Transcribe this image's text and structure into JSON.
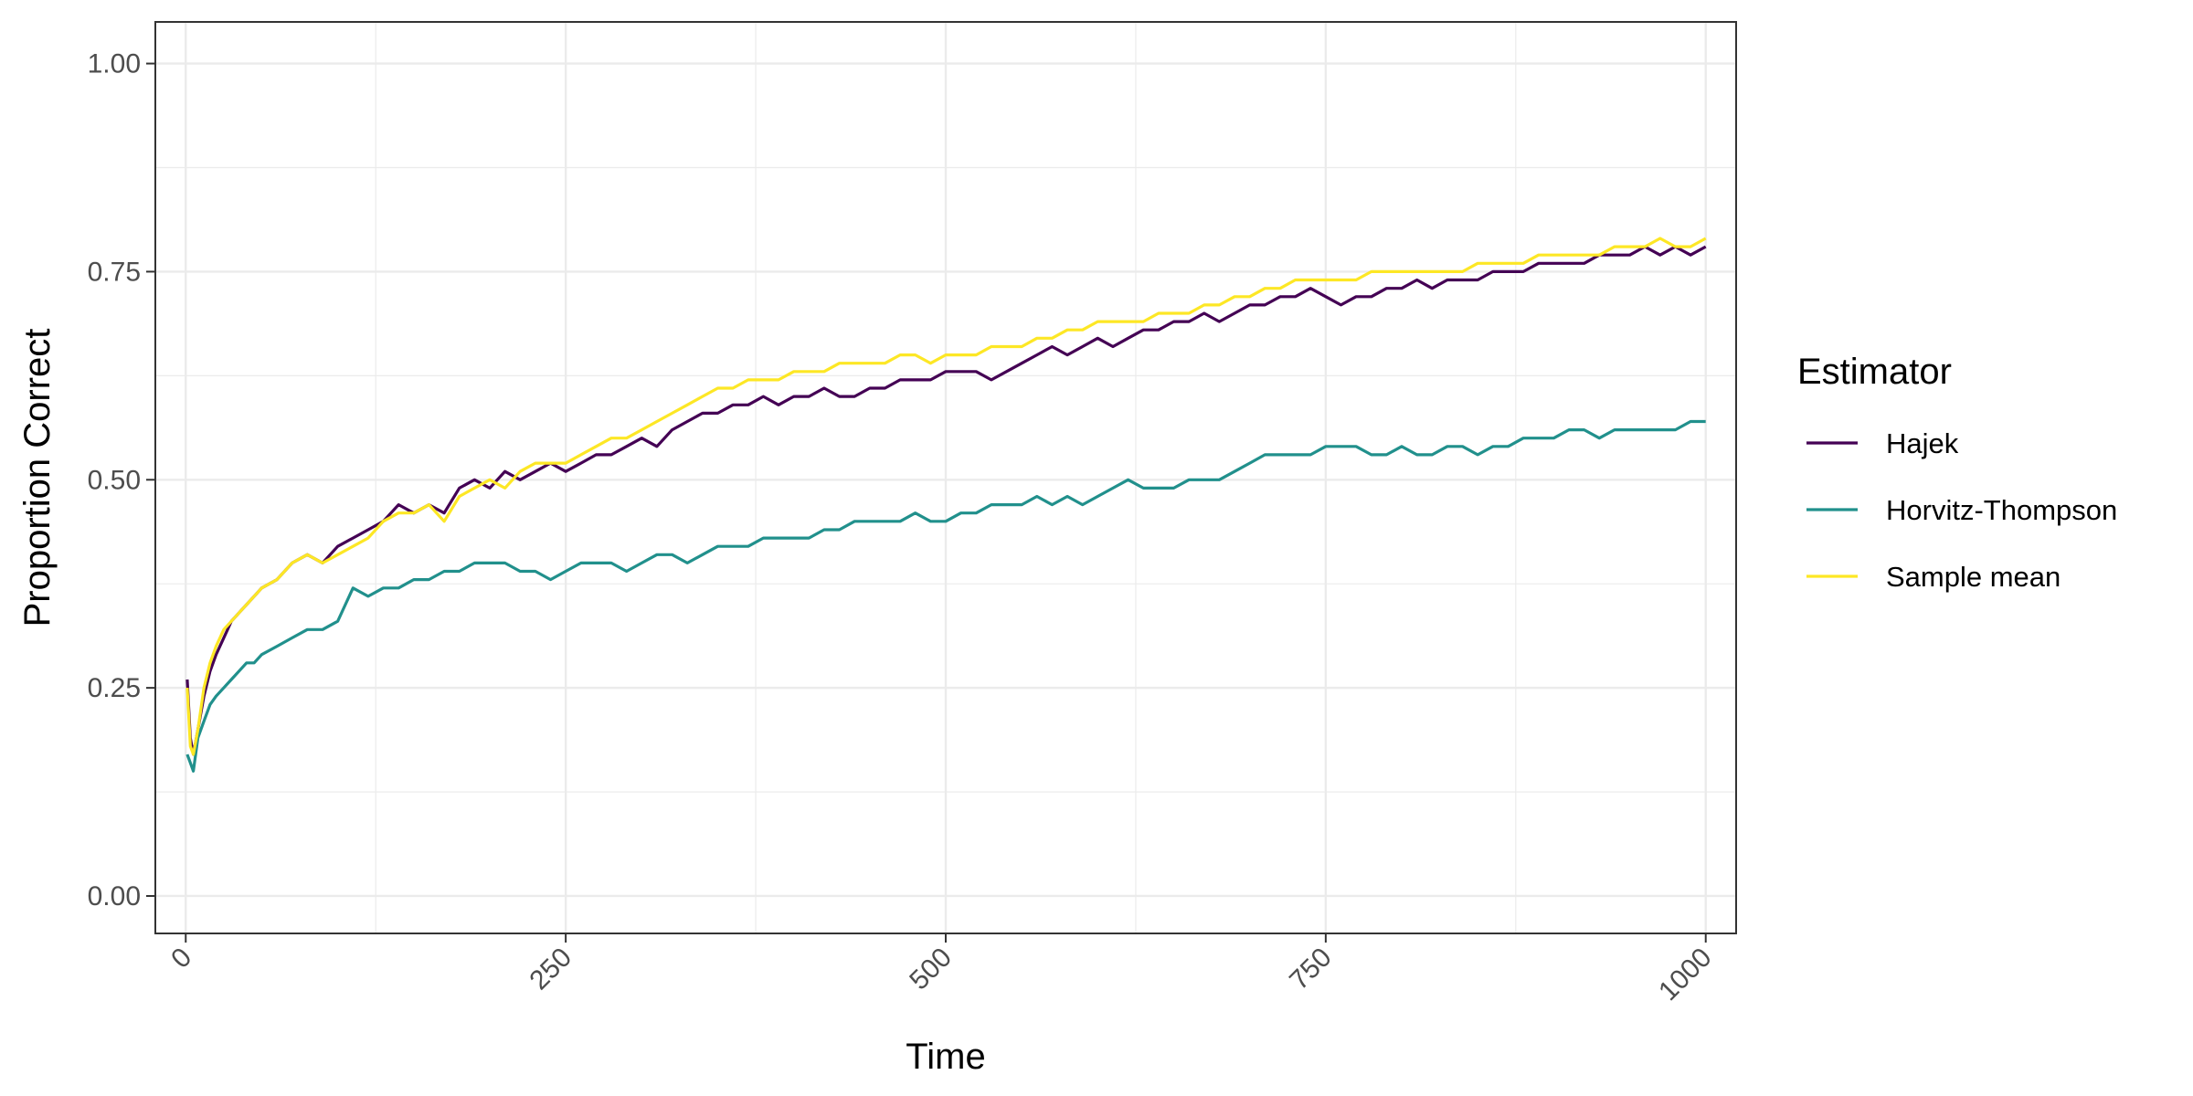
{
  "chart_data": {
    "type": "line",
    "title": "",
    "xlabel": "Time",
    "ylabel": "Proportion Correct",
    "xlim": [
      -20,
      1020
    ],
    "ylim": [
      -0.045,
      1.05
    ],
    "x_ticks": [
      0,
      250,
      500,
      750,
      1000
    ],
    "x_tick_labels": [
      "0",
      "250",
      "500",
      "750",
      "1000"
    ],
    "y_ticks": [
      0,
      0.25,
      0.5,
      0.75,
      1.0
    ],
    "y_tick_labels": [
      "0.00",
      "0.25",
      "0.50",
      "0.75",
      "1.00"
    ],
    "grid": true,
    "legend": {
      "title": "Estimator",
      "position": "right"
    },
    "series": [
      {
        "name": "Hajek",
        "color": "#440154",
        "x": [
          1,
          3,
          5,
          8,
          12,
          16,
          20,
          25,
          30,
          35,
          40,
          45,
          50,
          60,
          70,
          80,
          90,
          100,
          110,
          120,
          130,
          140,
          150,
          160,
          170,
          180,
          190,
          200,
          210,
          220,
          230,
          240,
          250,
          260,
          270,
          280,
          290,
          300,
          310,
          320,
          330,
          340,
          350,
          360,
          370,
          380,
          390,
          400,
          410,
          420,
          430,
          440,
          450,
          460,
          470,
          480,
          490,
          500,
          510,
          520,
          530,
          540,
          550,
          560,
          570,
          580,
          590,
          600,
          610,
          620,
          630,
          640,
          650,
          660,
          670,
          680,
          690,
          700,
          710,
          720,
          730,
          740,
          750,
          760,
          770,
          780,
          790,
          800,
          810,
          820,
          830,
          840,
          850,
          860,
          870,
          880,
          890,
          900,
          910,
          920,
          930,
          940,
          950,
          960,
          970,
          980,
          990,
          1000
        ],
        "y": [
          0.26,
          0.19,
          0.17,
          0.2,
          0.24,
          0.27,
          0.29,
          0.31,
          0.33,
          0.34,
          0.35,
          0.36,
          0.37,
          0.38,
          0.4,
          0.41,
          0.4,
          0.42,
          0.43,
          0.44,
          0.45,
          0.47,
          0.46,
          0.47,
          0.46,
          0.49,
          0.5,
          0.49,
          0.51,
          0.5,
          0.51,
          0.52,
          0.51,
          0.52,
          0.53,
          0.53,
          0.54,
          0.55,
          0.54,
          0.56,
          0.57,
          0.58,
          0.58,
          0.59,
          0.59,
          0.6,
          0.59,
          0.6,
          0.6,
          0.61,
          0.6,
          0.6,
          0.61,
          0.61,
          0.62,
          0.62,
          0.62,
          0.63,
          0.63,
          0.63,
          0.62,
          0.63,
          0.64,
          0.65,
          0.66,
          0.65,
          0.66,
          0.67,
          0.66,
          0.67,
          0.68,
          0.68,
          0.69,
          0.69,
          0.7,
          0.69,
          0.7,
          0.71,
          0.71,
          0.72,
          0.72,
          0.73,
          0.72,
          0.71,
          0.72,
          0.72,
          0.73,
          0.73,
          0.74,
          0.73,
          0.74,
          0.74,
          0.74,
          0.75,
          0.75,
          0.75,
          0.76,
          0.76,
          0.76,
          0.76,
          0.77,
          0.77,
          0.77,
          0.78,
          0.77,
          0.78,
          0.77,
          0.78
        ]
      },
      {
        "name": "Horvitz-Thompson",
        "color": "#21908C",
        "x": [
          1,
          3,
          5,
          8,
          12,
          16,
          20,
          25,
          30,
          35,
          40,
          45,
          50,
          60,
          70,
          80,
          90,
          100,
          110,
          120,
          130,
          140,
          150,
          160,
          170,
          180,
          190,
          200,
          210,
          220,
          230,
          240,
          250,
          260,
          270,
          280,
          290,
          300,
          310,
          320,
          330,
          340,
          350,
          360,
          370,
          380,
          390,
          400,
          410,
          420,
          430,
          440,
          450,
          460,
          470,
          480,
          490,
          500,
          510,
          520,
          530,
          540,
          550,
          560,
          570,
          580,
          590,
          600,
          610,
          620,
          630,
          640,
          650,
          660,
          670,
          680,
          690,
          700,
          710,
          720,
          730,
          740,
          750,
          760,
          770,
          780,
          790,
          800,
          810,
          820,
          830,
          840,
          850,
          860,
          870,
          880,
          890,
          900,
          910,
          920,
          930,
          940,
          950,
          960,
          970,
          980,
          990,
          1000
        ],
        "y": [
          0.17,
          0.16,
          0.15,
          0.19,
          0.21,
          0.23,
          0.24,
          0.25,
          0.26,
          0.27,
          0.28,
          0.28,
          0.29,
          0.3,
          0.31,
          0.32,
          0.32,
          0.33,
          0.37,
          0.36,
          0.37,
          0.37,
          0.38,
          0.38,
          0.39,
          0.39,
          0.4,
          0.4,
          0.4,
          0.39,
          0.39,
          0.38,
          0.39,
          0.4,
          0.4,
          0.4,
          0.39,
          0.4,
          0.41,
          0.41,
          0.4,
          0.41,
          0.42,
          0.42,
          0.42,
          0.43,
          0.43,
          0.43,
          0.43,
          0.44,
          0.44,
          0.45,
          0.45,
          0.45,
          0.45,
          0.46,
          0.45,
          0.45,
          0.46,
          0.46,
          0.47,
          0.47,
          0.47,
          0.48,
          0.47,
          0.48,
          0.47,
          0.48,
          0.49,
          0.5,
          0.49,
          0.49,
          0.49,
          0.5,
          0.5,
          0.5,
          0.51,
          0.52,
          0.53,
          0.53,
          0.53,
          0.53,
          0.54,
          0.54,
          0.54,
          0.53,
          0.53,
          0.54,
          0.53,
          0.53,
          0.54,
          0.54,
          0.53,
          0.54,
          0.54,
          0.55,
          0.55,
          0.55,
          0.56,
          0.56,
          0.55,
          0.56,
          0.56,
          0.56,
          0.56,
          0.56,
          0.57,
          0.57
        ]
      },
      {
        "name": "Sample mean",
        "color": "#FDE725",
        "x": [
          1,
          3,
          5,
          8,
          12,
          16,
          20,
          25,
          30,
          35,
          40,
          45,
          50,
          60,
          70,
          80,
          90,
          100,
          110,
          120,
          130,
          140,
          150,
          160,
          170,
          180,
          190,
          200,
          210,
          220,
          230,
          240,
          250,
          260,
          270,
          280,
          290,
          300,
          310,
          320,
          330,
          340,
          350,
          360,
          370,
          380,
          390,
          400,
          410,
          420,
          430,
          440,
          450,
          460,
          470,
          480,
          490,
          500,
          510,
          520,
          530,
          540,
          550,
          560,
          570,
          580,
          590,
          600,
          610,
          620,
          630,
          640,
          650,
          660,
          670,
          680,
          690,
          700,
          710,
          720,
          730,
          740,
          750,
          760,
          770,
          780,
          790,
          800,
          810,
          820,
          830,
          840,
          850,
          860,
          870,
          880,
          890,
          900,
          910,
          920,
          930,
          940,
          950,
          960,
          970,
          980,
          990,
          1000
        ],
        "y": [
          0.25,
          0.18,
          0.17,
          0.2,
          0.25,
          0.28,
          0.3,
          0.32,
          0.33,
          0.34,
          0.35,
          0.36,
          0.37,
          0.38,
          0.4,
          0.41,
          0.4,
          0.41,
          0.42,
          0.43,
          0.45,
          0.46,
          0.46,
          0.47,
          0.45,
          0.48,
          0.49,
          0.5,
          0.49,
          0.51,
          0.52,
          0.52,
          0.52,
          0.53,
          0.54,
          0.55,
          0.55,
          0.56,
          0.57,
          0.58,
          0.59,
          0.6,
          0.61,
          0.61,
          0.62,
          0.62,
          0.62,
          0.63,
          0.63,
          0.63,
          0.64,
          0.64,
          0.64,
          0.64,
          0.65,
          0.65,
          0.64,
          0.65,
          0.65,
          0.65,
          0.66,
          0.66,
          0.66,
          0.67,
          0.67,
          0.68,
          0.68,
          0.69,
          0.69,
          0.69,
          0.69,
          0.7,
          0.7,
          0.7,
          0.71,
          0.71,
          0.72,
          0.72,
          0.73,
          0.73,
          0.74,
          0.74,
          0.74,
          0.74,
          0.74,
          0.75,
          0.75,
          0.75,
          0.75,
          0.75,
          0.75,
          0.75,
          0.76,
          0.76,
          0.76,
          0.76,
          0.77,
          0.77,
          0.77,
          0.77,
          0.77,
          0.78,
          0.78,
          0.78,
          0.79,
          0.78,
          0.78,
          0.79
        ]
      }
    ]
  }
}
